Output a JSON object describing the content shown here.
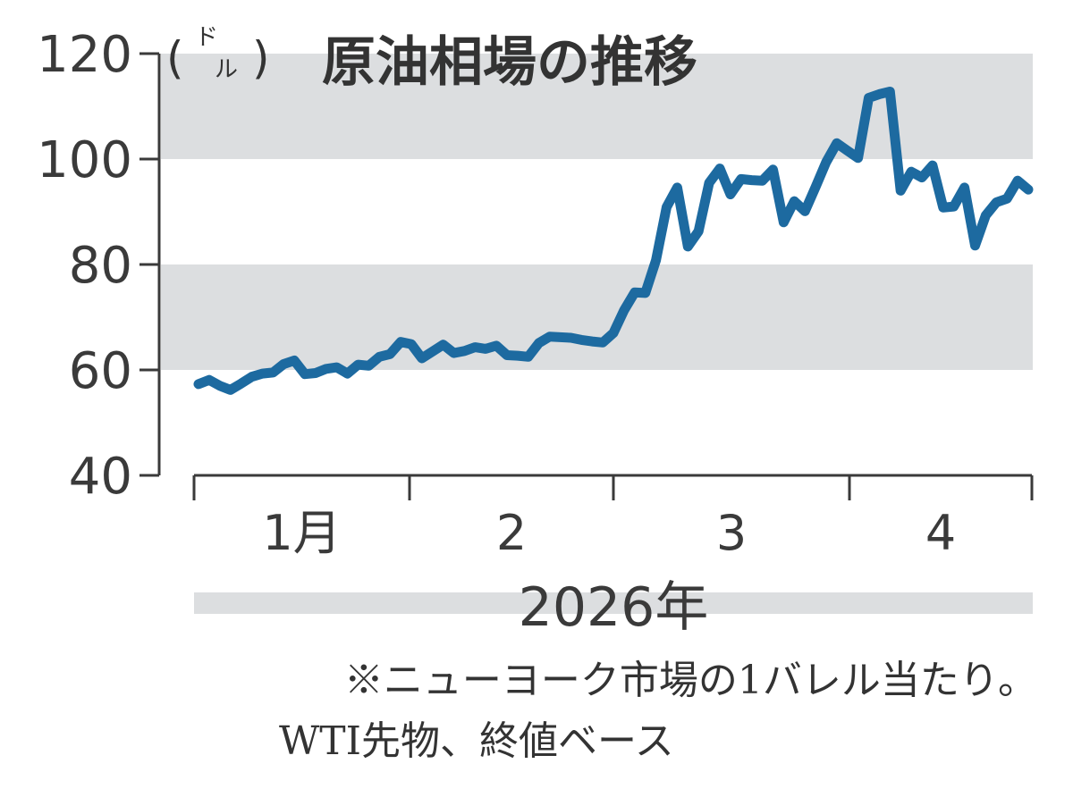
{
  "chart_data": {
    "type": "line",
    "title": "原油相場の推移",
    "unit": "(ドル)",
    "unit_open": "(",
    "unit_top": "ド",
    "unit_bottom": "ル",
    "unit_close": ")",
    "ylim": [
      40,
      120
    ],
    "yticks": [
      "120",
      "100",
      "80",
      "60",
      "40"
    ],
    "xlabel": "2026年",
    "months": [
      "1月",
      "2",
      "3",
      "4"
    ],
    "series": [
      {
        "name": "WTI",
        "color": "#1d6aa0",
        "values": [
          57.3,
          58.1,
          57.0,
          56.2,
          57.4,
          58.7,
          59.3,
          59.5,
          61.1,
          61.8,
          59.2,
          59.4,
          60.2,
          60.5,
          59.3,
          61.0,
          60.8,
          62.5,
          63.0,
          65.3,
          64.9,
          62.2,
          63.5,
          64.8,
          63.2,
          63.6,
          64.3,
          64.0,
          64.6,
          62.8,
          62.7,
          62.5,
          65.1,
          66.3,
          66.2,
          66.1,
          65.7,
          65.4,
          65.2,
          67.0,
          71.3,
          74.7,
          74.6,
          80.8,
          90.9,
          94.6,
          83.4,
          86.3,
          95.5,
          98.2,
          93.3,
          96.2,
          96.0,
          95.9,
          98.0,
          88.0,
          92.0,
          90.1,
          94.7,
          99.4,
          103.0,
          101.6,
          100.2,
          111.6,
          112.3,
          112.8,
          94.0,
          97.6,
          96.5,
          98.8,
          90.8,
          91.0,
          94.6,
          83.6,
          89.3,
          91.8,
          92.5,
          95.9,
          94.2
        ]
      }
    ]
  },
  "notes": {
    "line1": "※ニューヨーク市場の1バレル当たり。",
    "line2": "WTI先物、終値ベース"
  },
  "colors": {
    "band": "#dcdee0",
    "axis": "#3a3a3a",
    "line": "#1d6aa0"
  }
}
